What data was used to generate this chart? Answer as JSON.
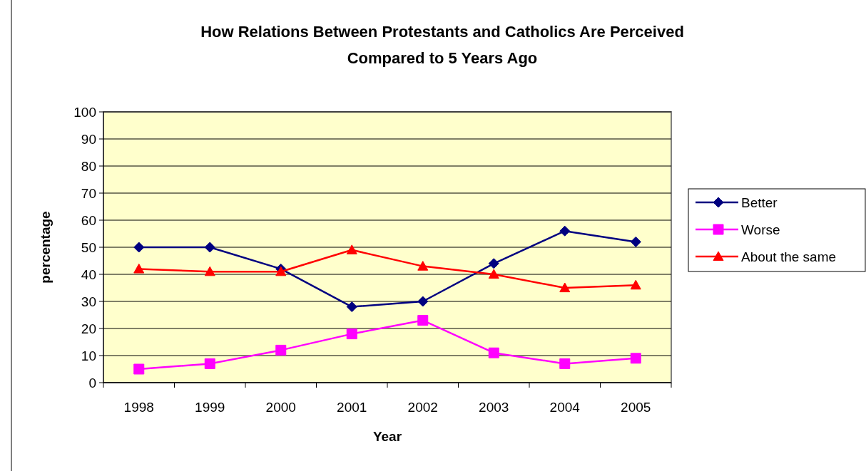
{
  "chart_data": {
    "type": "line",
    "title": "How Relations Between Protestants and Catholics Are Perceived\nCompared to 5 Years Ago",
    "xlabel": "Year",
    "ylabel": "percentage",
    "categories": [
      "1998",
      "1999",
      "2000",
      "2001",
      "2002",
      "2003",
      "2004",
      "2005"
    ],
    "series": [
      {
        "name": "Better",
        "color": "#000080",
        "marker": "diamond",
        "values": [
          50,
          50,
          42,
          28,
          30,
          44,
          56,
          52
        ]
      },
      {
        "name": "Worse",
        "color": "#ff00ff",
        "marker": "square",
        "values": [
          5,
          7,
          12,
          18,
          23,
          11,
          7,
          9
        ]
      },
      {
        "name": "About the same",
        "color": "#ff0000",
        "marker": "triangle",
        "values": [
          42,
          41,
          41,
          49,
          43,
          40,
          35,
          36
        ]
      }
    ],
    "ylim": [
      0,
      100
    ],
    "yticks": [
      0,
      10,
      20,
      30,
      40,
      50,
      60,
      70,
      80,
      90,
      100
    ],
    "grid": "y",
    "legend": "right",
    "line_style": "solid"
  }
}
